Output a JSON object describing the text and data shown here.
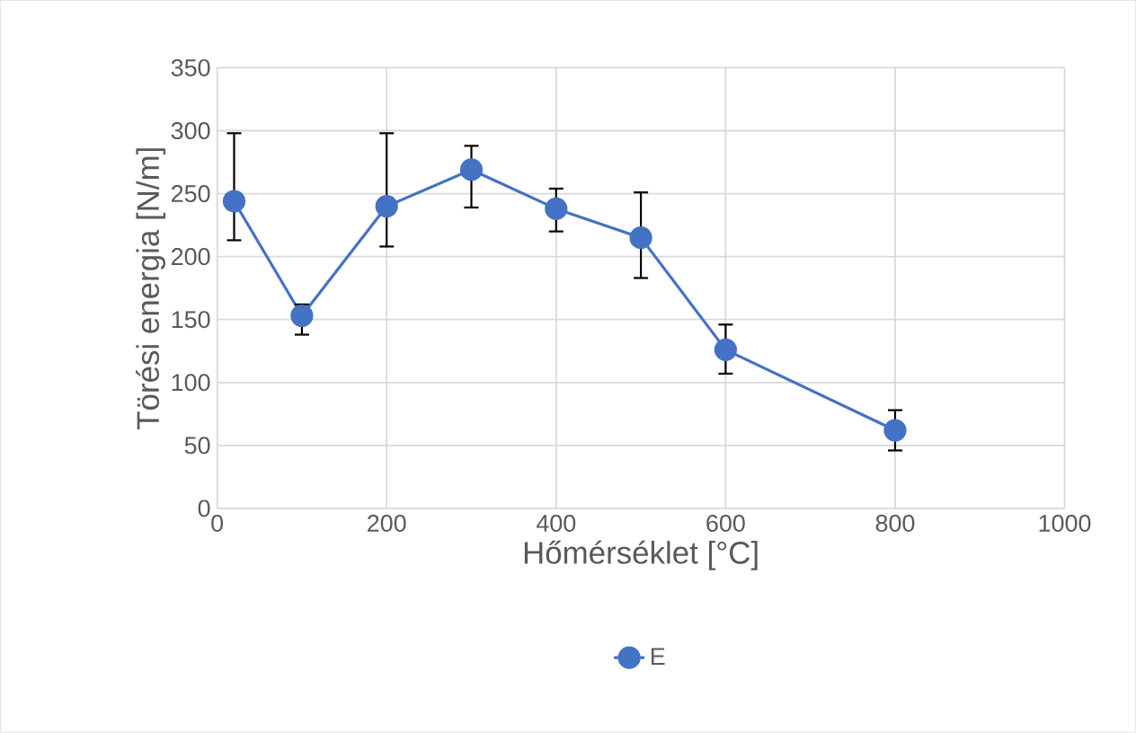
{
  "chart_data": {
    "type": "line",
    "xlabel": "Hőmérséklet [°C]",
    "ylabel": "Törési energia [N/m]",
    "x": [
      20,
      100,
      200,
      300,
      400,
      500,
      600,
      800
    ],
    "series": [
      {
        "name": "E",
        "color": "#4472c4",
        "values": [
          244,
          153,
          240,
          269,
          238,
          215,
          126,
          62
        ],
        "errors": [
          [
            213,
            298
          ],
          [
            138,
            162
          ],
          [
            208,
            298
          ],
          [
            239,
            288
          ],
          [
            220,
            254
          ],
          [
            183,
            251
          ],
          [
            107,
            146
          ],
          [
            46,
            78
          ]
        ]
      }
    ],
    "xlim": [
      0,
      1000
    ],
    "xticks": [
      0,
      200,
      400,
      600,
      800,
      1000
    ],
    "ylim": [
      0,
      350
    ],
    "yticks": [
      0,
      50,
      100,
      150,
      200,
      250,
      300,
      350
    ],
    "grid": true,
    "legend": "bottom",
    "marker": "circle",
    "line_style": "solid"
  }
}
